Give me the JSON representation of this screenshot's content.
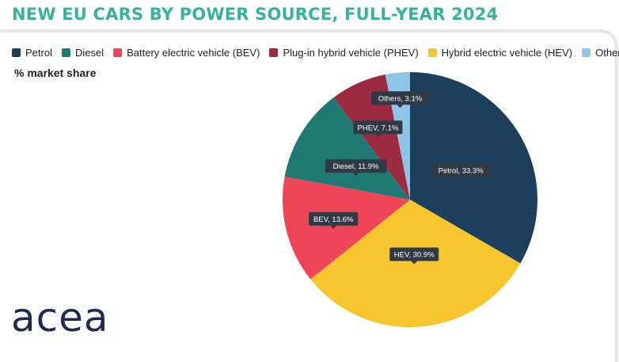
{
  "title": "NEW EU CARS BY POWER SOURCE, FULL-YEAR 2024",
  "subtitle": "% market share",
  "brand": "acea",
  "legend": [
    {
      "label": "Petrol",
      "color": "#1d3f5e"
    },
    {
      "label": "Diesel",
      "color": "#1e7a73"
    },
    {
      "label": "Battery electric vehicle (BEV)",
      "color": "#ee4656"
    },
    {
      "label": "Plug-in hybrid vehicle (PHEV)",
      "color": "#9c2a40"
    },
    {
      "label": "Hybrid electric vehicle (HEV)",
      "color": "#f7c52e"
    },
    {
      "label": "Others",
      "color": "#8fc6e8"
    }
  ],
  "chart_data": {
    "type": "pie",
    "title": "NEW EU CARS BY POWER SOURCE, FULL-YEAR 2024",
    "unit": "% market share",
    "slices": [
      {
        "name": "Petrol",
        "label": "Petrol, 33.3%",
        "value": 33.3,
        "color": "#1d3f5e"
      },
      {
        "name": "HEV",
        "label": "HEV, 30.9%",
        "value": 30.9,
        "color": "#f7c52e"
      },
      {
        "name": "BEV",
        "label": "BEV, 13.6%",
        "value": 13.6,
        "color": "#ee4656"
      },
      {
        "name": "Diesel",
        "label": "Diesel, 11.9%",
        "value": 11.9,
        "color": "#1e7a73"
      },
      {
        "name": "PHEV",
        "label": "PHEV, 7.1%",
        "value": 7.1,
        "color": "#9c2a40"
      },
      {
        "name": "Others",
        "label": "Others, 3.1%",
        "value": 3.1,
        "color": "#8fc6e8"
      }
    ],
    "start": "12 o'clock",
    "direction": "clockwise",
    "legend_position": "top"
  }
}
